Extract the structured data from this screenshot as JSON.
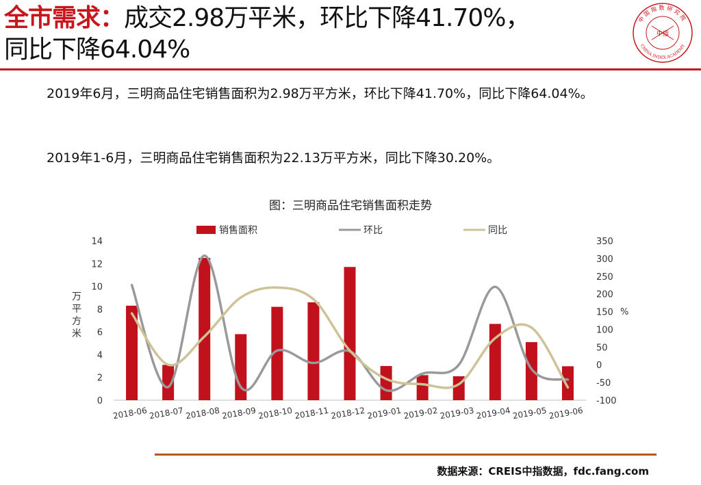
{
  "header": {
    "title_accent": "全市需求：",
    "title_line1": "成交2.98万平米，环比下降41.70%，",
    "title_line2": "同比下降64.04%"
  },
  "logo": {
    "top_text": "中国指数研究院",
    "center_text": "中指",
    "bottom_text": "CHINA INDEX ACADEMY"
  },
  "body": {
    "paragraph1": "2019年6月，三明商品住宅销售面积为2.98万平方米，环比下降41.70%，同比下降64.04%。",
    "paragraph2": "2019年1-6月，三明商品住宅销售面积为22.13万平方米，同比下降30.20%。"
  },
  "chart_data": {
    "type": "bar",
    "title": "图：三明商品住宅销售面积走势",
    "categories": [
      "2018-06",
      "2018-07",
      "2018-08",
      "2018-09",
      "2018-10",
      "2018-11",
      "2018-12",
      "2019-01",
      "2019-02",
      "2019-03",
      "2019-04",
      "2019-05",
      "2019-06"
    ],
    "series": [
      {
        "name": "销售面积",
        "type": "bar",
        "axis": "left",
        "color": "#c0111c",
        "values": [
          8.3,
          3.1,
          12.5,
          5.8,
          8.2,
          8.6,
          11.7,
          3.0,
          2.2,
          2.1,
          6.7,
          5.1,
          2.98
        ]
      },
      {
        "name": "环比",
        "type": "line",
        "axis": "right",
        "color": "#999999",
        "values": [
          225,
          -63,
          308,
          -63,
          40,
          5,
          38,
          -72,
          -25,
          0,
          220,
          -12,
          -42
        ]
      },
      {
        "name": "同比",
        "type": "line",
        "axis": "right",
        "color": "#cdc396",
        "values": [
          145,
          0,
          80,
          190,
          218,
          185,
          40,
          -40,
          -55,
          -55,
          75,
          105,
          -64
        ]
      }
    ],
    "ylabel_left": "万平方米",
    "ylabel_right": "%",
    "ylim_left": [
      0,
      14
    ],
    "yticks_left": [
      "0",
      "2",
      "4",
      "6",
      "8",
      "10",
      "12",
      "14"
    ],
    "ylim_right": [
      -100,
      350
    ],
    "yticks_right": [
      "-100",
      "-50",
      "0",
      "50",
      "100",
      "150",
      "200",
      "250",
      "300",
      "350"
    ],
    "legend_position": "top"
  },
  "footer": {
    "source": "数据来源：CREIS中指数据，fdc.fang.com"
  }
}
